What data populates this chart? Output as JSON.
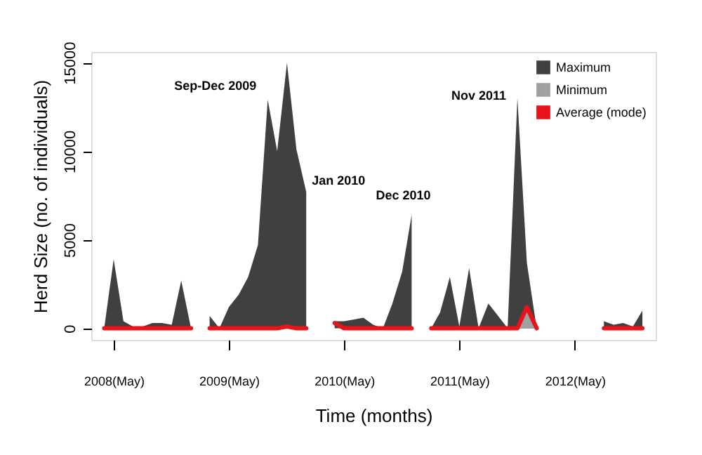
{
  "chart_data": {
    "type": "area",
    "xlabel": "Time (months)",
    "ylabel": "Herd Size (no. of individuals)",
    "x": [
      "2008-04",
      "2008-05",
      "2008-06",
      "2008-07",
      "2008-08",
      "2008-09",
      "2008-10",
      "2008-11",
      "2008-12",
      "2009-01",
      "2009-02",
      "2009-03",
      "2009-04",
      "2009-05",
      "2009-06",
      "2009-07",
      "2009-08",
      "2009-09",
      "2009-10",
      "2009-11",
      "2009-12",
      "2010-01",
      "2010-02",
      "2010-03",
      "2010-04",
      "2010-05",
      "2010-06",
      "2010-07",
      "2010-08",
      "2010-09",
      "2010-10",
      "2010-11",
      "2010-12",
      "2011-01",
      "2011-02",
      "2011-03",
      "2011-04",
      "2011-05",
      "2011-06",
      "2011-07",
      "2011-08",
      "2011-09",
      "2011-10",
      "2011-11",
      "2011-12",
      "2012-01",
      "2012-02",
      "2012-03",
      "2012-04",
      "2012-05",
      "2012-06",
      "2012-07",
      "2012-08",
      "2012-09",
      "2012-10",
      "2012-11",
      "2012-12"
    ],
    "series": [
      {
        "name": "Maximum",
        "color": "#404040",
        "values": [
          0,
          3900,
          400,
          100,
          100,
          300,
          300,
          200,
          2700,
          0,
          null,
          700,
          0,
          1200,
          1900,
          2900,
          4700,
          12900,
          10000,
          15000,
          10100,
          7700,
          null,
          null,
          400,
          400,
          500,
          600,
          200,
          0,
          1400,
          3200,
          6400,
          null,
          0,
          900,
          2900,
          100,
          3400,
          0,
          1400,
          700,
          0,
          13000,
          3700,
          0,
          null,
          null,
          null,
          null,
          null,
          null,
          400,
          200,
          300,
          100,
          1000
        ]
      },
      {
        "name": "Minimum",
        "color": "#a0a0a0",
        "values": [
          null,
          null,
          null,
          null,
          null,
          null,
          null,
          null,
          null,
          null,
          null,
          null,
          null,
          null,
          null,
          null,
          null,
          null,
          null,
          null,
          null,
          null,
          null,
          null,
          null,
          null,
          null,
          null,
          null,
          null,
          null,
          null,
          null,
          null,
          null,
          null,
          null,
          null,
          null,
          null,
          null,
          null,
          null,
          0,
          1000,
          0,
          null,
          null,
          null,
          null,
          null,
          null,
          null,
          null,
          null,
          null,
          null
        ]
      },
      {
        "name": "Average (mode)",
        "type": "line",
        "color": "#e8141c",
        "values": [
          0,
          0,
          0,
          0,
          0,
          0,
          0,
          0,
          0,
          0,
          null,
          0,
          0,
          0,
          0,
          0,
          0,
          0,
          0,
          100,
          0,
          0,
          null,
          null,
          300,
          0,
          0,
          0,
          0,
          0,
          0,
          0,
          0,
          null,
          0,
          0,
          0,
          0,
          0,
          0,
          0,
          0,
          0,
          0,
          1200,
          0,
          null,
          null,
          null,
          null,
          null,
          null,
          0,
          0,
          0,
          0,
          0
        ]
      }
    ],
    "xlim": [
      "2008-02-20",
      "2013-01-12"
    ],
    "xticks": [
      {
        "value": "2008-05",
        "label": "2008(May)"
      },
      {
        "value": "2009-05",
        "label": "2009(May)"
      },
      {
        "value": "2010-05",
        "label": "2010(May)"
      },
      {
        "value": "2011-05",
        "label": "2011(May)"
      },
      {
        "value": "2012-05",
        "label": "2012(May)"
      }
    ],
    "ylim": [
      -650,
      15600
    ],
    "yticks": [
      0,
      5000,
      10000,
      15000
    ],
    "annotations": [
      {
        "text": "Sep-Dec 2009",
        "x": "2009-09",
        "y": 12900
      },
      {
        "text": "Jan 2010",
        "x": "2010-01",
        "y": 7700
      },
      {
        "text": "Dec 2010",
        "x": "2010-12",
        "y": 6400
      },
      {
        "text": "Nov 2011",
        "x": "2011-11",
        "y": 13000
      }
    ],
    "legend": "top right",
    "grid": false
  }
}
